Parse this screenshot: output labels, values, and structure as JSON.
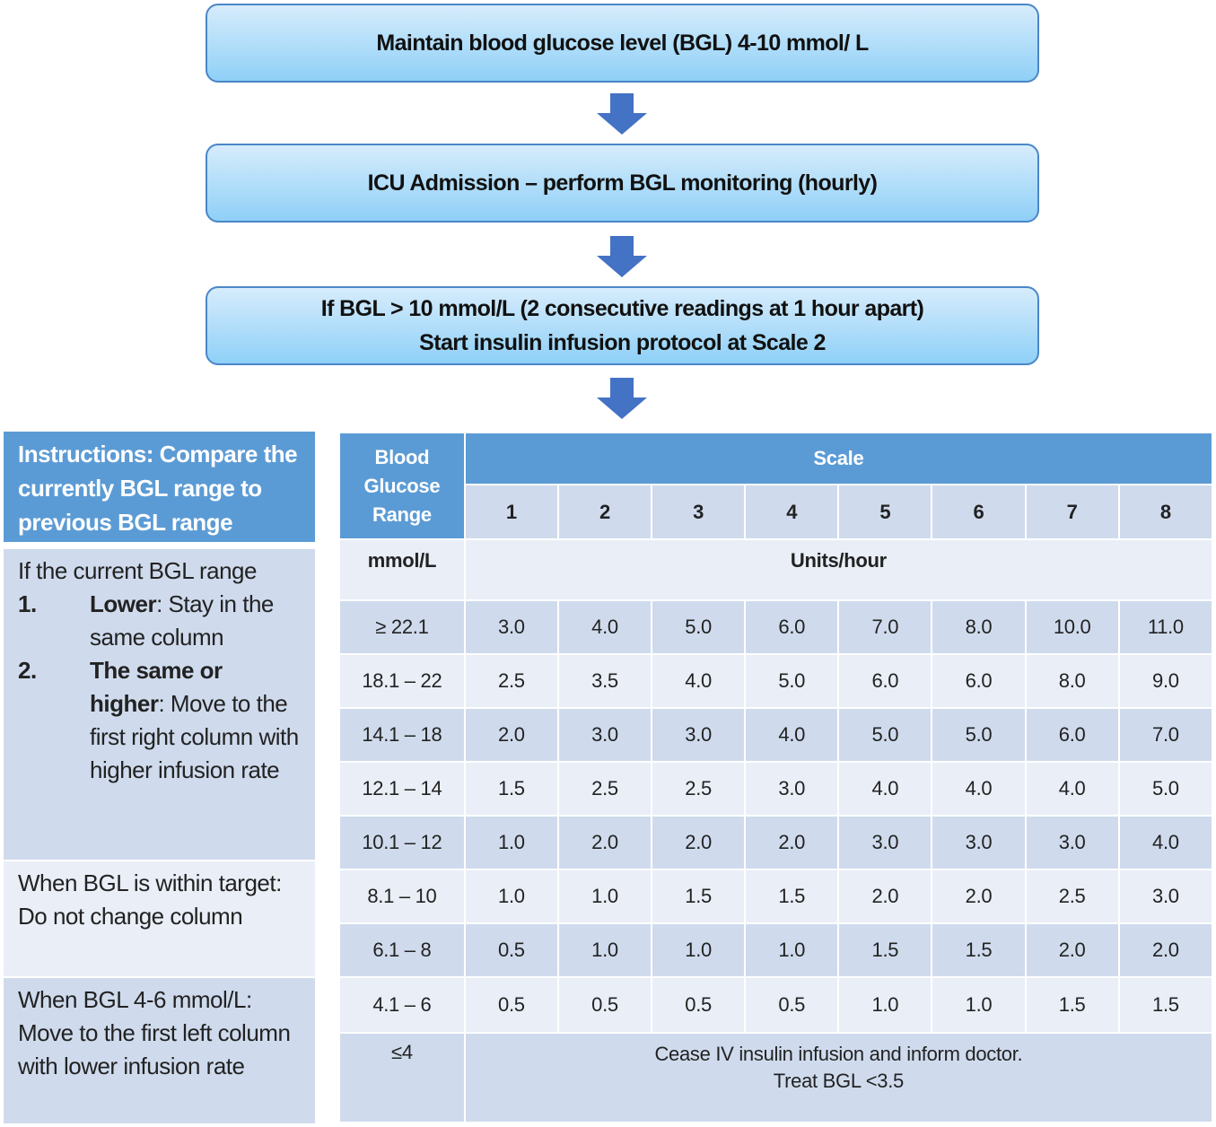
{
  "flow": {
    "box1": "Maintain blood glucose level (BGL) 4-10 mmol/ L",
    "box2": "ICU Admission – perform BGL monitoring (hourly)",
    "box3_line1": "If BGL > 10 mmol/L (2 consecutive readings at 1 hour apart)",
    "box3_line2": "Start insulin infusion protocol at Scale 2"
  },
  "instructions": {
    "title": "Instructions: Compare the currently BGL range to previous BGL range",
    "intro": "If the current BGL range",
    "items": [
      {
        "num": "1.",
        "bold": "Lower",
        "text": ": Stay in the same column"
      },
      {
        "num": "2.",
        "bold": "The same or higher",
        "text": ": Move to the first right column with higher infusion rate"
      }
    ],
    "within_target": "When BGL is within target: Do not change column",
    "low": "When BGL 4-6 mmol/L: Move to the first left column with lower infusion rate"
  },
  "table": {
    "range_header": "Blood Glucose Range",
    "scale_header": "Scale",
    "scales": [
      "1",
      "2",
      "3",
      "4",
      "5",
      "6",
      "7",
      "8"
    ],
    "unit_left": "mmol/L",
    "unit_right": "Units/hour",
    "rows": [
      {
        "range": "≥ 22.1",
        "values": [
          "3.0",
          "4.0",
          "5.0",
          "6.0",
          "7.0",
          "8.0",
          "10.0",
          "11.0"
        ]
      },
      {
        "range": "18.1 – 22",
        "values": [
          "2.5",
          "3.5",
          "4.0",
          "5.0",
          "6.0",
          "6.0",
          "8.0",
          "9.0"
        ]
      },
      {
        "range": "14.1 – 18",
        "values": [
          "2.0",
          "3.0",
          "3.0",
          "4.0",
          "5.0",
          "5.0",
          "6.0",
          "7.0"
        ]
      },
      {
        "range": "12.1 – 14",
        "values": [
          "1.5",
          "2.5",
          "2.5",
          "3.0",
          "4.0",
          "4.0",
          "4.0",
          "5.0"
        ]
      },
      {
        "range": "10.1 – 12",
        "values": [
          "1.0",
          "2.0",
          "2.0",
          "2.0",
          "3.0",
          "3.0",
          "3.0",
          "4.0"
        ]
      },
      {
        "range": "8.1 – 10",
        "values": [
          "1.0",
          "1.0",
          "1.5",
          "1.5",
          "2.0",
          "2.0",
          "2.5",
          "3.0"
        ]
      },
      {
        "range": "6.1 – 8",
        "values": [
          "0.5",
          "1.0",
          "1.0",
          "1.0",
          "1.5",
          "1.5",
          "2.0",
          "2.0"
        ]
      },
      {
        "range": "4.1 – 6",
        "values": [
          "0.5",
          "0.5",
          "0.5",
          "0.5",
          "1.0",
          "1.0",
          "1.5",
          "1.5"
        ]
      }
    ],
    "last_range": "≤4",
    "last_line1": "Cease IV insulin infusion and inform doctor.",
    "last_line2": "Treat BGL <3.5"
  }
}
